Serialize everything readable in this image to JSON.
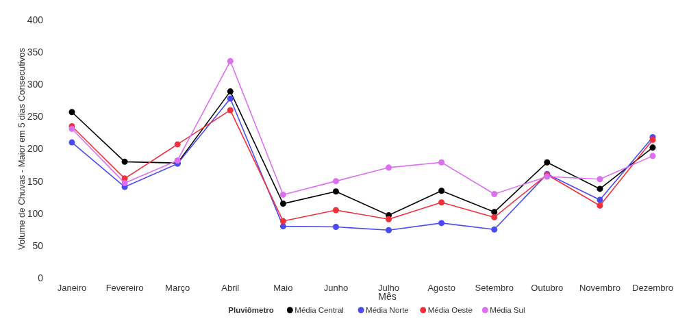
{
  "chart_data": {
    "type": "line",
    "xlabel": "Mês",
    "ylabel": "Volume de Chuvas - Maior em 5 dias Consecutivos",
    "legend_title": "Pluviômetro",
    "legend": "bottom",
    "marker": "circle",
    "grid": false,
    "categories": [
      "Janeiro",
      "Fevereiro",
      "Março",
      "Abril",
      "Maio",
      "Junho",
      "Julho",
      "Agosto",
      "Setembro",
      "Outubro",
      "Novembro",
      "Dezembro"
    ],
    "ylim": [
      0,
      400
    ],
    "yticks": [
      0,
      50,
      100,
      150,
      200,
      250,
      300,
      350,
      400
    ],
    "series": [
      {
        "name": "Média Central",
        "color": "#000000",
        "values": [
          257,
          180,
          178,
          289,
          115,
          134,
          97,
          135,
          102,
          179,
          138,
          202
        ]
      },
      {
        "name": "Média Norte",
        "color": "#4a4af0",
        "values": [
          210,
          141,
          177,
          278,
          80,
          79,
          74,
          85,
          75,
          161,
          121,
          218
        ]
      },
      {
        "name": "Média Oeste",
        "color": "#f0303c",
        "values": [
          235,
          154,
          207,
          260,
          88,
          105,
          91,
          117,
          94,
          160,
          112,
          214
        ]
      },
      {
        "name": "Média Sul",
        "color": "#dd6ef0",
        "values": [
          231,
          147,
          182,
          336,
          129,
          150,
          171,
          179,
          130,
          157,
          153,
          189
        ]
      }
    ]
  }
}
